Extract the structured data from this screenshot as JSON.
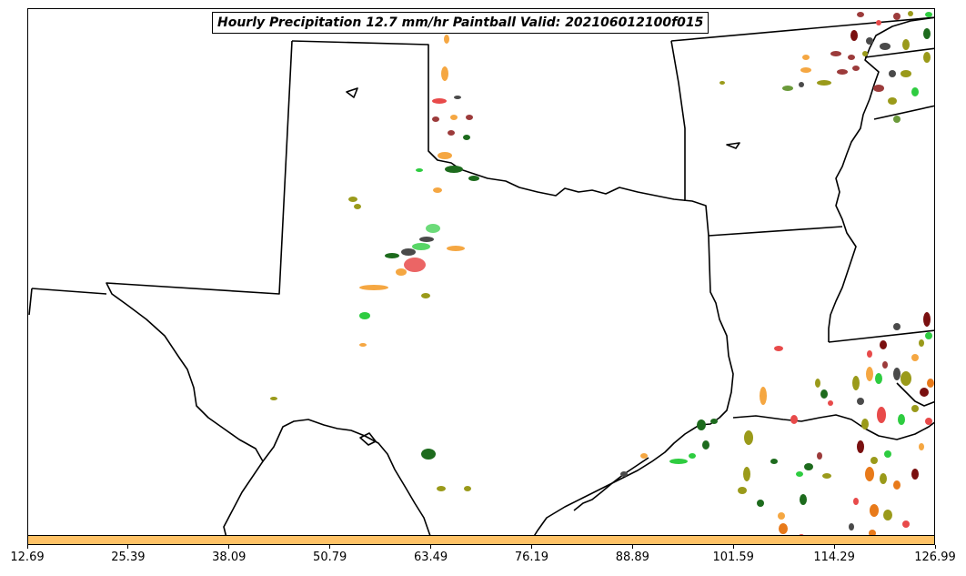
{
  "title": "Hourly Precipitation 12.7 mm/hr Paintball Valid: 202106012100f015",
  "colorbar": {
    "color": "#ffc266",
    "ticks": [
      "12.69",
      "25.39",
      "38.09",
      "50.79",
      "63.49",
      "76.19",
      "88.89",
      "101.59",
      "114.29",
      "126.99"
    ]
  },
  "colors": {
    "orange": "#f5a742",
    "red": "#e84a4a",
    "brown": "#9c3b3b",
    "dark_gray": "#4a4a4a",
    "green": "#2ecc40",
    "dark_green": "#1d6b1d",
    "olive": "#9a9a1a",
    "dark_red": "#7a1010"
  }
}
